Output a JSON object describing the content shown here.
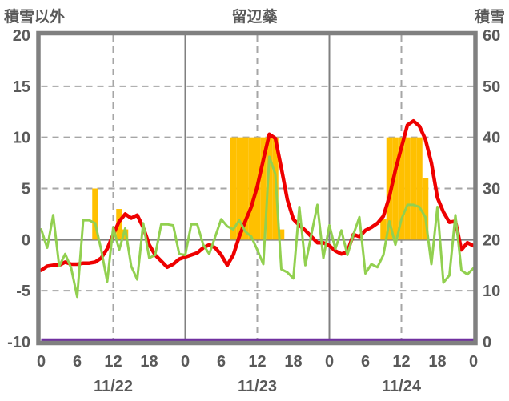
{
  "header": {
    "left_axis_title": "積雪以外",
    "title": "留辺蘂",
    "right_axis_title": "積雪"
  },
  "chart_data": {
    "type": "combo",
    "title": "留辺蘂",
    "x": {
      "unit": "hour",
      "range": [
        0,
        72
      ],
      "tick_hours": [
        0,
        6,
        12,
        18,
        24,
        30,
        36,
        42,
        48,
        54,
        60,
        66,
        72
      ],
      "tick_labels": [
        "0",
        "6",
        "12",
        "18",
        "0",
        "6",
        "12",
        "18",
        "0",
        "6",
        "12",
        "18",
        "0"
      ],
      "day_labels": [
        {
          "label": "11/22",
          "center_hour": 12
        },
        {
          "label": "11/23",
          "center_hour": 36
        },
        {
          "label": "11/24",
          "center_hour": 60
        }
      ]
    },
    "left_axis": {
      "title": "積雪以外",
      "min": -10,
      "max": 20,
      "ticks": [
        20,
        15,
        10,
        5,
        0,
        -5,
        -10
      ]
    },
    "right_axis": {
      "title": "積雪",
      "min": 0,
      "max": 60,
      "ticks": [
        60,
        50,
        40,
        30,
        20,
        10,
        0
      ]
    },
    "gridlines": {
      "dashed_horizontal_left_values": [
        15,
        10,
        5,
        -5
      ],
      "solid_horizontal_left_values": [
        0
      ],
      "dashed_vertical_hours": [
        12,
        36,
        60
      ],
      "solid_vertical_hours": [
        24,
        48
      ]
    },
    "series": [
      {
        "name": "snowfall-bars",
        "type": "bar",
        "axis": "left",
        "color": "#FFC000",
        "values": [
          0,
          0,
          0,
          0,
          0,
          0,
          0,
          0,
          0,
          5,
          0,
          0,
          0,
          3,
          1,
          0,
          0,
          0,
          0,
          0,
          0,
          0,
          0,
          0,
          0,
          0,
          0,
          0,
          0,
          0,
          0,
          0,
          10,
          10,
          10,
          10,
          10,
          10,
          10,
          10,
          1,
          0,
          0,
          0,
          0,
          0,
          0,
          0,
          0,
          0,
          0,
          0,
          0,
          0,
          0,
          0,
          0,
          2,
          10,
          10,
          10,
          10,
          10,
          10,
          6,
          0,
          0,
          0,
          0,
          0,
          0,
          0,
          0
        ]
      },
      {
        "name": "red-line",
        "type": "line",
        "axis": "left",
        "color": "#EE0000",
        "stroke_width": 4.5,
        "values": [
          -3.0,
          -2.6,
          -2.5,
          -2.5,
          -2.2,
          -2.4,
          -2.4,
          -2.3,
          -2.3,
          -2.2,
          -1.8,
          -0.9,
          0.5,
          1.8,
          2.5,
          2.1,
          2.4,
          1.2,
          -0.5,
          -1.5,
          -2.1,
          -2.7,
          -2.4,
          -1.9,
          -1.7,
          -1.5,
          -1.3,
          -0.8,
          -0.5,
          -0.8,
          -1.5,
          -2.5,
          -1.5,
          0.3,
          1.8,
          3.2,
          5.2,
          7.8,
          10.3,
          9.9,
          7.0,
          3.9,
          2.0,
          1.4,
          0.9,
          0.3,
          -0.3,
          -0.3,
          -0.6,
          -1.1,
          -1.4,
          -1.2,
          0.5,
          0.3,
          0.9,
          1.2,
          1.6,
          2.3,
          4.2,
          6.8,
          9.0,
          11.2,
          11.6,
          11.1,
          9.8,
          7.5,
          4.1,
          2.7,
          1.7,
          1.8,
          -1.0,
          -0.3,
          -0.6
        ]
      },
      {
        "name": "green-line",
        "type": "line",
        "axis": "left",
        "color": "#92D050",
        "stroke_width": 3,
        "values": [
          1.0,
          -0.8,
          2.4,
          -2.6,
          -1.4,
          -2.8,
          -5.6,
          1.9,
          1.9,
          1.6,
          -1.0,
          -4.1,
          1.2,
          -1.0,
          1.1,
          -2.6,
          -3.9,
          1.6,
          -1.8,
          -1.5,
          1.5,
          1.5,
          1.4,
          -1.4,
          -1.5,
          1.5,
          1.5,
          -0.5,
          -1.4,
          0.3,
          2.0,
          1.3,
          1.0,
          1.9,
          0.8,
          0.3,
          -1.0,
          -2.4,
          8.1,
          6.4,
          -2.9,
          -3.2,
          -3.8,
          3.2,
          -2.5,
          0.5,
          3.4,
          -1.8,
          1.4,
          -0.9,
          0.9,
          -1.5,
          0.5,
          2.2,
          -3.3,
          -2.4,
          -2.7,
          -1.5,
          1.8,
          -0.5,
          2.0,
          3.4,
          3.4,
          3.2,
          2.2,
          -2.4,
          3.2,
          -4.2,
          -3.5,
          2.4,
          -3.0,
          -3.4,
          -2.8
        ]
      },
      {
        "name": "purple-line",
        "type": "line",
        "axis": "right",
        "color": "#7030A0",
        "stroke_width": 3.5,
        "constant_value": 0
      }
    ],
    "colors": {
      "frame": "#808080",
      "grid": "#A6A6A6",
      "zero_line": "#808080",
      "text": "#595959",
      "background": "#FFFFFF"
    }
  }
}
